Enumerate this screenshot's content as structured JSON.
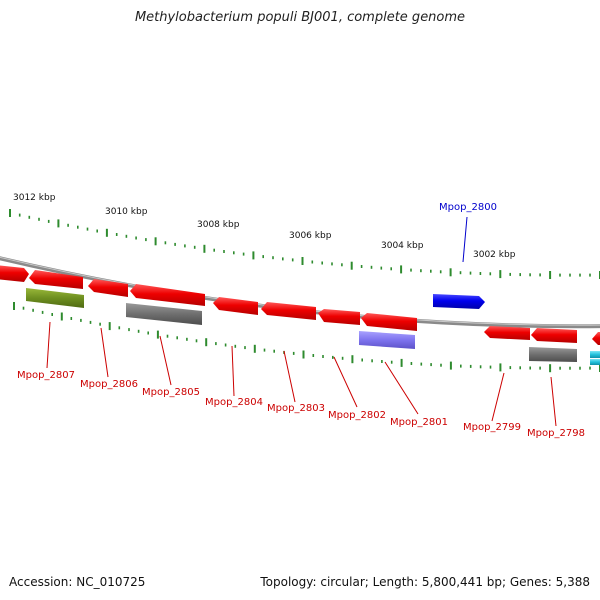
{
  "title": "Methylobacterium populi BJ001, complete genome",
  "footer": {
    "accession": "Accession: NC_010725",
    "summary": "Topology: circular; Length: 5,800,441 bp; Genes: 5,388"
  },
  "colors": {
    "backbone": "#8a8a8a",
    "tick": "#2e8b2e",
    "tick_label": "#111111",
    "forward_gene": "#0000ee",
    "reverse_gene": "#ee0000",
    "label_forward": "#0000cc",
    "label_reverse": "#cc0000"
  },
  "scale_labels": [
    "3012 kbp",
    "3010 kbp",
    "3008 kbp",
    "3006 kbp",
    "3004 kbp",
    "3002 kbp"
  ],
  "genes": [
    {
      "label": "Mpop_2807",
      "strand": "-",
      "color": "#ee0000"
    },
    {
      "label": "Mpop_2806",
      "strand": "-",
      "color": "#ee0000"
    },
    {
      "label": "Mpop_2805",
      "strand": "-",
      "color": "#ee0000"
    },
    {
      "label": "Mpop_2804",
      "strand": "-",
      "color": "#ee0000"
    },
    {
      "label": "Mpop_2803",
      "strand": "-",
      "color": "#ee0000"
    },
    {
      "label": "Mpop_2802",
      "strand": "-",
      "color": "#ee0000"
    },
    {
      "label": "Mpop_2801",
      "strand": "-",
      "color": "#ee0000"
    },
    {
      "label": "Mpop_2800",
      "strand": "+",
      "color": "#0000ee"
    },
    {
      "label": "Mpop_2799",
      "strand": "-",
      "color": "#ee0000"
    },
    {
      "label": "Mpop_2798",
      "strand": "-",
      "color": "#ee0000"
    }
  ]
}
